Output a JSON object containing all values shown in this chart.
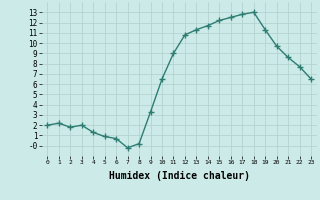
{
  "x": [
    0,
    1,
    2,
    3,
    4,
    5,
    6,
    7,
    8,
    9,
    10,
    11,
    12,
    13,
    14,
    15,
    16,
    17,
    18,
    19,
    20,
    21,
    22,
    23
  ],
  "y": [
    2,
    2.2,
    1.8,
    2,
    1.3,
    0.9,
    0.7,
    -0.2,
    0.2,
    3.3,
    6.5,
    9.0,
    10.8,
    11.3,
    11.7,
    12.2,
    12.5,
    12.8,
    13.0,
    11.3,
    9.7,
    8.6,
    7.7,
    6.5
  ],
  "line_color": "#2e7d72",
  "marker": "+",
  "marker_size": 4,
  "bg_color": "#cceae7",
  "grid_color": "#b0d0cd",
  "xlabel": "Humidex (Indice chaleur)",
  "xlabel_fontsize": 7,
  "ylim": [
    -1,
    14
  ],
  "xlim": [
    -0.5,
    23.5
  ],
  "yticks": [
    0,
    1,
    2,
    3,
    4,
    5,
    6,
    7,
    8,
    9,
    10,
    11,
    12,
    13
  ],
  "xticks": [
    0,
    1,
    2,
    3,
    4,
    5,
    6,
    7,
    8,
    9,
    10,
    11,
    12,
    13,
    14,
    15,
    16,
    17,
    18,
    19,
    20,
    21,
    22,
    23
  ],
  "xtick_labels": [
    "0",
    "1",
    "2",
    "3",
    "4",
    "5",
    "6",
    "7",
    "8",
    "9",
    "10",
    "11",
    "12",
    "13",
    "14",
    "15",
    "16",
    "17",
    "18",
    "19",
    "20",
    "21",
    "22",
    "23"
  ],
  "ytick_labels": [
    "-0",
    "1",
    "2",
    "3",
    "4",
    "5",
    "6",
    "7",
    "8",
    "9",
    "10",
    "11",
    "12",
    "13"
  ]
}
